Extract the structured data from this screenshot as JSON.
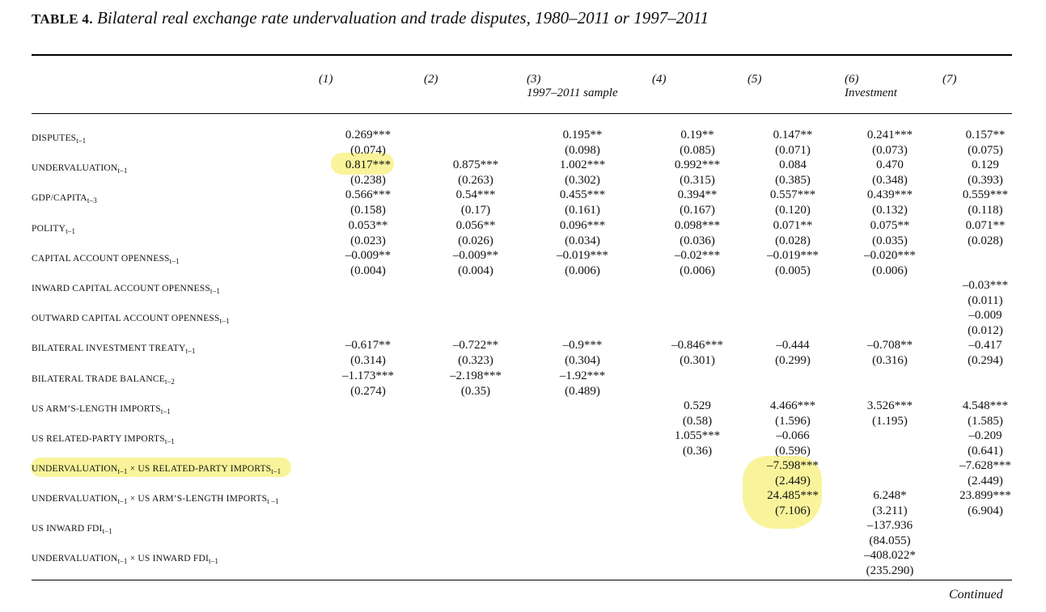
{
  "title": {
    "label": "TABLE 4.",
    "text": "Bilateral real exchange rate undervaluation and trade disputes, 1980–2011 or 1997–2011"
  },
  "columns": [
    {
      "num": "(1)",
      "sub": ""
    },
    {
      "num": "(2)",
      "sub": ""
    },
    {
      "num": "(3)",
      "sub": "1997–2011 sample"
    },
    {
      "num": "(4)",
      "sub": ""
    },
    {
      "num": "(5)",
      "sub": ""
    },
    {
      "num": "(6)",
      "sub": "Investment"
    },
    {
      "num": "(7)",
      "sub": ""
    }
  ],
  "rows": [
    {
      "main": "DISPUTES",
      "sub": "t–1",
      "main2": "",
      "sub2": "",
      "values": [
        [
          "0.269***",
          "(0.074)"
        ],
        [
          "",
          ""
        ],
        [
          "0.195**",
          "(0.098)"
        ],
        [
          "0.19**",
          "(0.085)"
        ],
        [
          "0.147**",
          "(0.071)"
        ],
        [
          "0.241***",
          "(0.073)"
        ],
        [
          "0.157**",
          "(0.075)"
        ]
      ]
    },
    {
      "main": "UNDERVALUATION",
      "sub": "t–1",
      "main2": "",
      "sub2": "",
      "values": [
        [
          "0.817***",
          "(0.238)"
        ],
        [
          "0.875***",
          "(0.263)"
        ],
        [
          "1.002***",
          "(0.302)"
        ],
        [
          "0.992***",
          "(0.315)"
        ],
        [
          "0.084",
          "(0.385)"
        ],
        [
          "0.470",
          "(0.348)"
        ],
        [
          "0.129",
          "(0.393)"
        ]
      ]
    },
    {
      "main": "GDP/CAPITA",
      "sub": "t–3",
      "main2": "",
      "sub2": "",
      "values": [
        [
          "0.566***",
          "(0.158)"
        ],
        [
          "0.54***",
          "(0.17)"
        ],
        [
          "0.455***",
          "(0.161)"
        ],
        [
          "0.394**",
          "(0.167)"
        ],
        [
          "0.557***",
          "(0.120)"
        ],
        [
          "0.439***",
          "(0.132)"
        ],
        [
          "0.559***",
          "(0.118)"
        ]
      ]
    },
    {
      "main": "POLITY",
      "sub": "t–1",
      "main2": "",
      "sub2": "",
      "values": [
        [
          "0.053**",
          "(0.023)"
        ],
        [
          "0.056**",
          "(0.026)"
        ],
        [
          "0.096***",
          "(0.034)"
        ],
        [
          "0.098***",
          "(0.036)"
        ],
        [
          "0.071**",
          "(0.028)"
        ],
        [
          "0.075**",
          "(0.035)"
        ],
        [
          "0.071**",
          "(0.028)"
        ]
      ]
    },
    {
      "main": "CAPITAL ACCOUNT OPENNESS",
      "sub": "t–1",
      "main2": "",
      "sub2": "",
      "values": [
        [
          "–0.009**",
          "(0.004)"
        ],
        [
          "–0.009**",
          "(0.004)"
        ],
        [
          "–0.019***",
          "(0.006)"
        ],
        [
          "–0.02***",
          "(0.006)"
        ],
        [
          "–0.019***",
          "(0.005)"
        ],
        [
          "–0.020***",
          "(0.006)"
        ],
        [
          "",
          ""
        ]
      ]
    },
    {
      "main": "INWARD CAPITAL ACCOUNT OPENNESS",
      "sub": "t–1",
      "main2": "",
      "sub2": "",
      "values": [
        [
          "",
          ""
        ],
        [
          "",
          ""
        ],
        [
          "",
          ""
        ],
        [
          "",
          ""
        ],
        [
          "",
          ""
        ],
        [
          "",
          ""
        ],
        [
          "–0.03***",
          "(0.011)"
        ]
      ]
    },
    {
      "main": "OUTWARD CAPITAL ACCOUNT OPENNESS",
      "sub": "t–1",
      "main2": "",
      "sub2": "",
      "values": [
        [
          "",
          ""
        ],
        [
          "",
          ""
        ],
        [
          "",
          ""
        ],
        [
          "",
          ""
        ],
        [
          "",
          ""
        ],
        [
          "",
          ""
        ],
        [
          "–0.009",
          "(0.012)"
        ]
      ]
    },
    {
      "main": "BILATERAL INVESTMENT TREATY",
      "sub": "t–1",
      "main2": "",
      "sub2": "",
      "values": [
        [
          "–0.617**",
          "(0.314)"
        ],
        [
          "–0.722**",
          "(0.323)"
        ],
        [
          "–0.9***",
          "(0.304)"
        ],
        [
          "–0.846***",
          "(0.301)"
        ],
        [
          "–0.444",
          "(0.299)"
        ],
        [
          "–0.708**",
          "(0.316)"
        ],
        [
          "–0.417",
          "(0.294)"
        ]
      ]
    },
    {
      "main": "BILATERAL TRADE BALANCE",
      "sub": "t–2",
      "main2": "",
      "sub2": "",
      "values": [
        [
          "–1.173***",
          "(0.274)"
        ],
        [
          "–2.198***",
          "(0.35)"
        ],
        [
          "–1.92***",
          "(0.489)"
        ],
        [
          "",
          ""
        ],
        [
          "",
          ""
        ],
        [
          "",
          ""
        ],
        [
          "",
          ""
        ]
      ]
    },
    {
      "main": "US ARM’S-LENGTH IMPORTS",
      "sub": "t–1",
      "main2": "",
      "sub2": "",
      "values": [
        [
          "",
          ""
        ],
        [
          "",
          ""
        ],
        [
          "",
          ""
        ],
        [
          "0.529",
          "(0.58)"
        ],
        [
          "4.466***",
          "(1.596)"
        ],
        [
          "3.526***",
          "(1.195)"
        ],
        [
          "4.548***",
          "(1.585)"
        ]
      ]
    },
    {
      "main": "US RELATED-PARTY IMPORTS",
      "sub": "t–1",
      "main2": "",
      "sub2": "",
      "values": [
        [
          "",
          ""
        ],
        [
          "",
          ""
        ],
        [
          "",
          ""
        ],
        [
          "1.055***",
          "(0.36)"
        ],
        [
          "–0.066",
          "(0.596)"
        ],
        [
          "",
          ""
        ],
        [
          "–0.209",
          "(0.641)"
        ]
      ]
    },
    {
      "main": "UNDERVALUATION",
      "sub": "t–1",
      "main2": " × US RELATED-PARTY IMPORTS",
      "sub2": "t–1",
      "values": [
        [
          "",
          ""
        ],
        [
          "",
          ""
        ],
        [
          "",
          ""
        ],
        [
          "",
          ""
        ],
        [
          "–7.598***",
          "(2.449)"
        ],
        [
          "",
          ""
        ],
        [
          "–7.628***",
          "(2.449)"
        ]
      ]
    },
    {
      "main": "UNDERVALUATION",
      "sub": "t–1",
      "main2": " × US ARM’S-LENGTH IMPORTS",
      "sub2": "t –1",
      "values": [
        [
          "",
          ""
        ],
        [
          "",
          ""
        ],
        [
          "",
          ""
        ],
        [
          "",
          ""
        ],
        [
          "24.485***",
          "(7.106)"
        ],
        [
          "6.248*",
          "(3.211)"
        ],
        [
          "23.899***",
          "(6.904)"
        ]
      ]
    },
    {
      "main": "US INWARD FDI",
      "sub": "t–1",
      "main2": "",
      "sub2": "",
      "values": [
        [
          "",
          ""
        ],
        [
          "",
          ""
        ],
        [
          "",
          ""
        ],
        [
          "",
          ""
        ],
        [
          "",
          ""
        ],
        [
          "–137.936",
          "(84.055)"
        ],
        [
          "",
          ""
        ]
      ]
    },
    {
      "main": "UNDERVALUATION",
      "sub": "t–1",
      "main2": " × US INWARD FDI",
      "sub2": "t–1",
      "values": [
        [
          "",
          ""
        ],
        [
          "",
          ""
        ],
        [
          "",
          ""
        ],
        [
          "",
          ""
        ],
        [
          "",
          ""
        ],
        [
          "–408.022*",
          "(235.290)"
        ],
        [
          "",
          ""
        ]
      ]
    }
  ],
  "footer": {
    "continued": "Continued"
  },
  "highlight_color": "#f7f07a"
}
